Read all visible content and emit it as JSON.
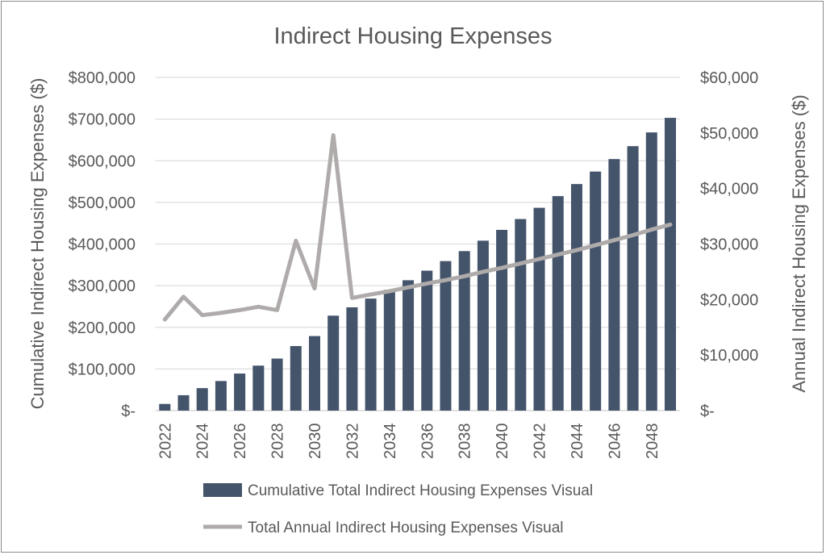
{
  "chart_data": {
    "type": "bar+line",
    "title": "Indirect Housing Expenses",
    "ylabel_left": "Cumulative Indirect Housing Expenses ($)",
    "ylabel_right": "Annual Indirect Housing Expenses ($)",
    "ylim_left": [
      0,
      800000
    ],
    "ylim_right": [
      0,
      60000
    ],
    "yticks_left": [
      "$-",
      "$100,000",
      "$200,000",
      "$300,000",
      "$400,000",
      "$500,000",
      "$600,000",
      "$700,000",
      "$800,000"
    ],
    "yticks_right": [
      "$-",
      "$10,000",
      "$20,000",
      "$30,000",
      "$40,000",
      "$50,000",
      "$60,000"
    ],
    "grid": true,
    "legend_position": "bottom",
    "categories": [
      2022,
      2023,
      2024,
      2025,
      2026,
      2027,
      2028,
      2029,
      2030,
      2031,
      2032,
      2033,
      2034,
      2035,
      2036,
      2037,
      2038,
      2039,
      2040,
      2041,
      2042,
      2043,
      2044,
      2045,
      2046,
      2047,
      2048,
      2049
    ],
    "xtick_labels": [
      "2022",
      "2024",
      "2026",
      "2028",
      "2030",
      "2032",
      "2034",
      "2036",
      "2038",
      "2040",
      "2042",
      "2044",
      "2046",
      "2048"
    ],
    "series": [
      {
        "name": "Cumulative Total Indirect Housing Expenses Visual",
        "type": "bar",
        "axis": "left",
        "color": "#44546a",
        "values": [
          16000,
          37000,
          54000,
          71000,
          89000,
          108000,
          125000,
          155000,
          179000,
          228000,
          248000,
          269000,
          290000,
          313000,
          336000,
          359000,
          383000,
          408000,
          434000,
          460000,
          487000,
          515000,
          544000,
          574000,
          604000,
          635000,
          668000,
          703000
        ]
      },
      {
        "name": "Total Annual Indirect Housing Expenses Visual",
        "type": "line",
        "axis": "right",
        "color": "#afabab",
        "values": [
          16400,
          20500,
          17200,
          17600,
          18100,
          18700,
          18100,
          30600,
          22000,
          49600,
          20300,
          20900,
          21500,
          22200,
          22900,
          23500,
          24200,
          25000,
          25700,
          26500,
          27300,
          28100,
          28900,
          29800,
          30700,
          31600,
          32600,
          33500
        ]
      }
    ]
  }
}
